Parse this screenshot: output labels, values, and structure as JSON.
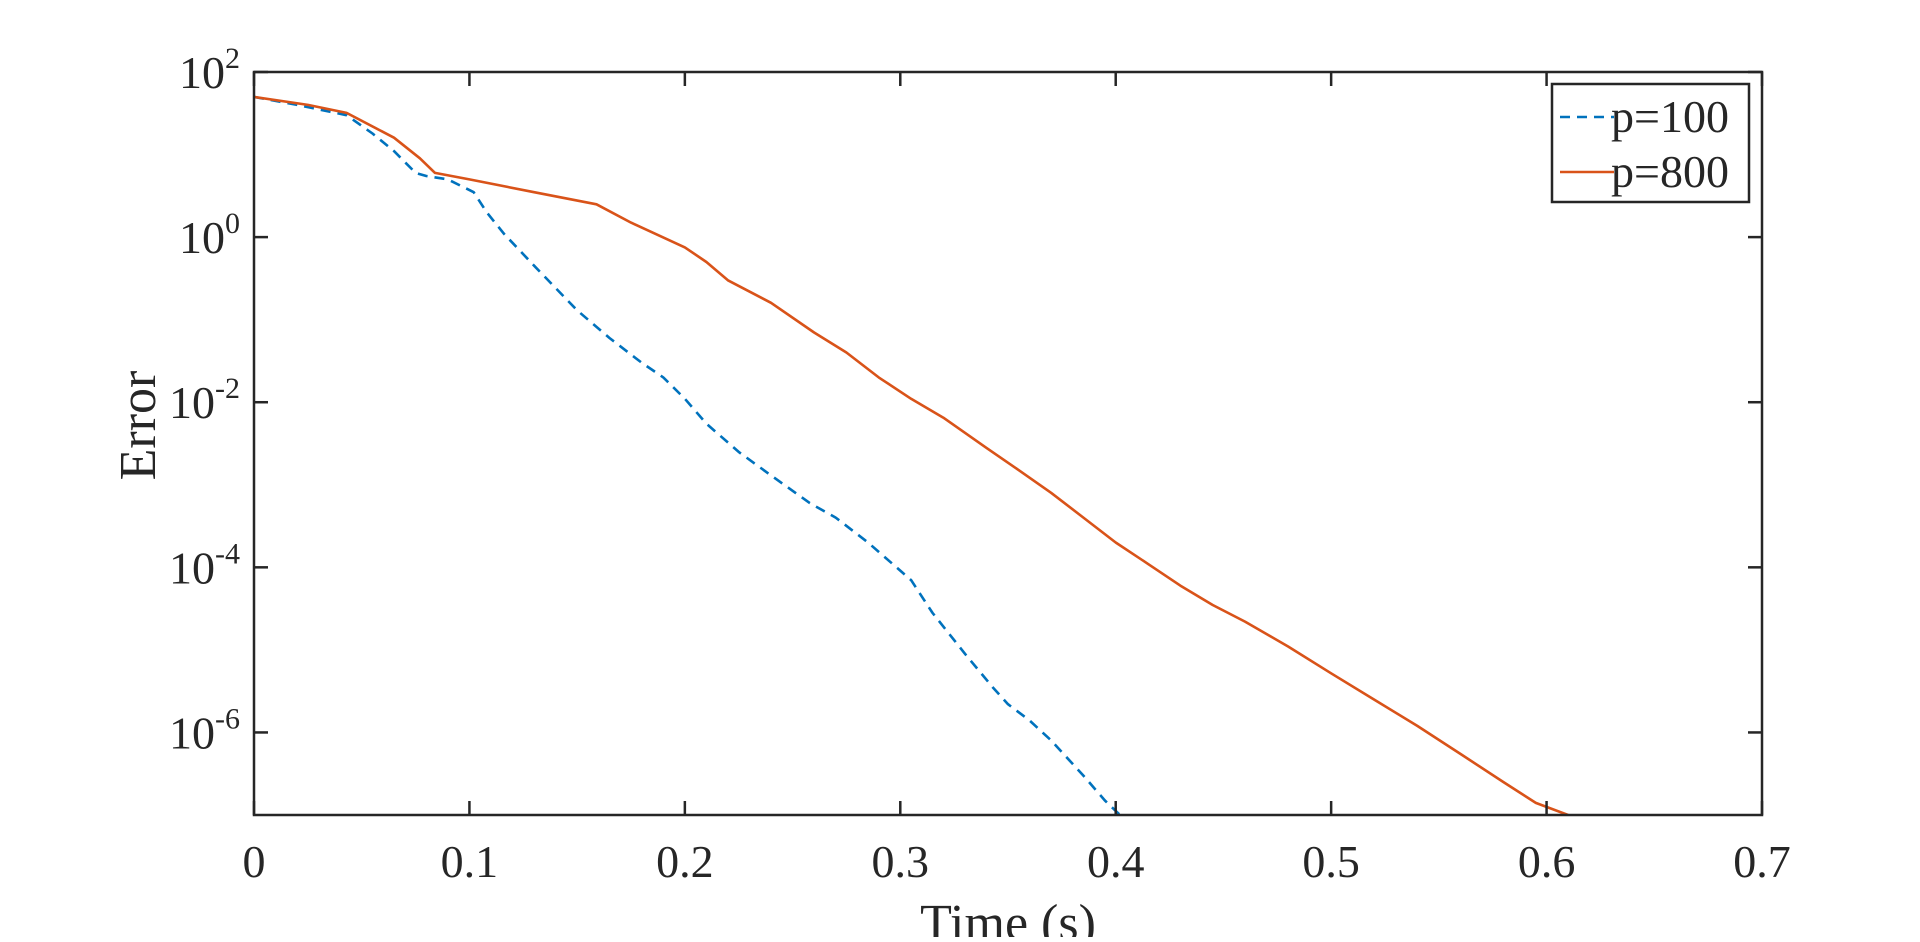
{
  "chart_data": {
    "type": "line",
    "title": "",
    "xlabel": "Time (s)",
    "ylabel": "Error",
    "xlim": [
      0,
      0.7
    ],
    "ylim": [
      1e-07,
      100
    ],
    "yscale": "log",
    "grid": false,
    "legend_position": "top-right",
    "x_ticks": [
      0,
      0.1,
      0.2,
      0.3,
      0.4,
      0.5,
      0.6,
      0.7
    ],
    "x_tick_labels": [
      "0",
      "0.1",
      "0.2",
      "0.3",
      "0.4",
      "0.5",
      "0.6",
      "0.7"
    ],
    "y_ticks": [
      {
        "value": 100,
        "base": "10",
        "exp": "2"
      },
      {
        "value": 1,
        "base": "10",
        "exp": "0"
      },
      {
        "value": 0.01,
        "base": "10",
        "exp": "-2"
      },
      {
        "value": 0.0001,
        "base": "10",
        "exp": "-4"
      },
      {
        "value": 1e-06,
        "base": "10",
        "exp": "-6"
      }
    ],
    "series": [
      {
        "name": "p=100",
        "color": "#0072BD",
        "style": "dashed",
        "x": [
          0,
          0.02,
          0.043,
          0.055,
          0.065,
          0.075,
          0.08,
          0.09,
          0.102,
          0.108,
          0.116,
          0.13,
          0.15,
          0.165,
          0.18,
          0.19,
          0.2,
          0.21,
          0.225,
          0.24,
          0.258,
          0.27,
          0.285,
          0.305,
          0.315,
          0.33,
          0.343,
          0.35,
          0.36,
          0.37,
          0.385,
          0.395,
          0.402
        ],
        "y": [
          50,
          40,
          30,
          18,
          11,
          6,
          5.5,
          5,
          3.5,
          2,
          1.1,
          0.45,
          0.13,
          0.06,
          0.03,
          0.02,
          0.011,
          0.0055,
          0.0025,
          0.0013,
          0.0006,
          0.0004,
          0.0002,
          7e-05,
          2.8e-05,
          9e-06,
          3.5e-06,
          2.2e-06,
          1.4e-06,
          8e-07,
          3e-07,
          1.5e-07,
          1e-07
        ]
      },
      {
        "name": "p=800",
        "color": "#D95319",
        "style": "solid",
        "x": [
          0,
          0.025,
          0.043,
          0.065,
          0.077,
          0.084,
          0.1,
          0.13,
          0.159,
          0.175,
          0.2,
          0.21,
          0.22,
          0.24,
          0.26,
          0.275,
          0.29,
          0.305,
          0.32,
          0.34,
          0.355,
          0.37,
          0.385,
          0.4,
          0.415,
          0.43,
          0.445,
          0.46,
          0.48,
          0.5,
          0.52,
          0.54,
          0.56,
          0.58,
          0.595,
          0.61
        ],
        "y": [
          50,
          40,
          32,
          16,
          9,
          6,
          5,
          3.5,
          2.5,
          1.5,
          0.75,
          0.5,
          0.3,
          0.16,
          0.07,
          0.04,
          0.02,
          0.011,
          0.0065,
          0.0028,
          0.0015,
          0.0008,
          0.0004,
          0.0002,
          0.00011,
          6e-05,
          3.5e-05,
          2.2e-05,
          1.1e-05,
          5.2e-06,
          2.5e-06,
          1.2e-06,
          5.5e-07,
          2.5e-07,
          1.4e-07,
          1e-07
        ]
      }
    ]
  }
}
